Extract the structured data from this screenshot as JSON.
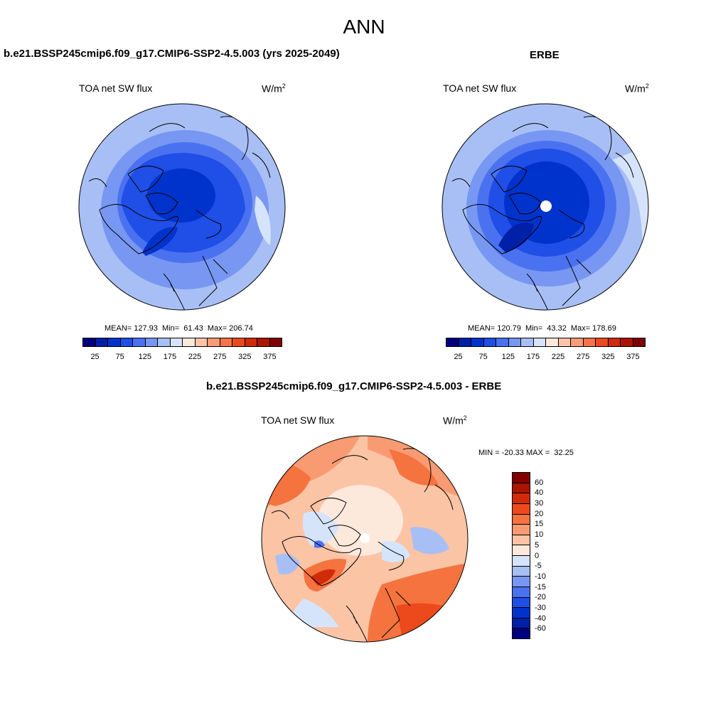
{
  "title": "ANN",
  "left_panel": {
    "title": "b.e21.BSSP245cmip6.f09_g17.CMIP6-SSP2-4.5.003 (yrs 2025-2049)",
    "variable": "TOA net SW flux",
    "units": "W/m",
    "units_sup": "2",
    "stats": "MEAN= 127.93  Min=  61.43  Max= 206.74"
  },
  "right_panel": {
    "title": "ERBE",
    "variable": "TOA net SW flux",
    "units": "W/m",
    "units_sup": "2",
    "stats": "MEAN= 120.79  Min=  43.32  Max= 178.69"
  },
  "diff_panel": {
    "title": "b.e21.BSSP245cmip6.f09_g17.CMIP6-SSP2-4.5.003 - ERBE",
    "variable": "TOA net SW flux",
    "units": "W/m",
    "units_sup": "2",
    "stats": "MIN = -20.33 MAX =  32.25"
  },
  "colorbar_abs": {
    "labels": [
      "25",
      "75",
      "125",
      "175",
      "225",
      "275",
      "325",
      "375"
    ],
    "colors": [
      "#00007f",
      "#0020a8",
      "#0033cc",
      "#1f4fe6",
      "#4a72f0",
      "#7897f2",
      "#a8bff5",
      "#d6e4fb",
      "#fde9dc",
      "#fcc3a8",
      "#f99b79",
      "#f5734a",
      "#ea4a1f",
      "#cf2a0a",
      "#aa1500",
      "#800000"
    ]
  },
  "colorbar_diff": {
    "labels": [
      "60",
      "40",
      "30",
      "20",
      "15",
      "10",
      "5",
      "0",
      "-5",
      "-10",
      "-15",
      "-20",
      "-30",
      "-40",
      "-60"
    ],
    "colors": [
      "#800000",
      "#aa1500",
      "#d12c0a",
      "#ec4a1c",
      "#f5733f",
      "#f89b72",
      "#fbc4a5",
      "#fde8dc",
      "#d6e4fb",
      "#a8bff5",
      "#7897f2",
      "#4a72f0",
      "#1f4fe6",
      "#0033cc",
      "#0020a8",
      "#00007f"
    ]
  }
}
